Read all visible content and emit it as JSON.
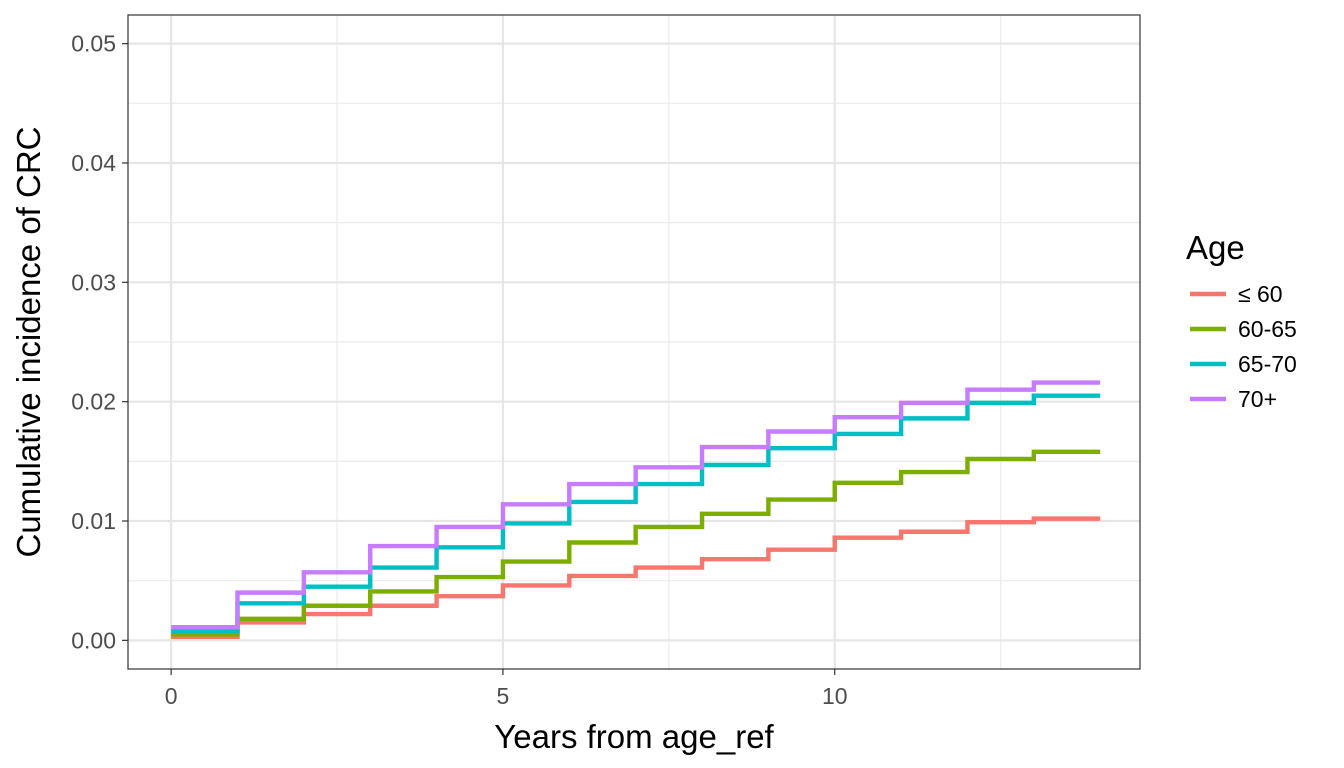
{
  "chart_data": {
    "type": "line",
    "step": true,
    "xlabel": "Years from age_ref",
    "ylabel": "Cumulative incidence of CRC",
    "xlim": [
      -0.65,
      14.6
    ],
    "ylim": [
      -0.0024,
      0.0524
    ],
    "xticks": [
      0,
      5,
      10
    ],
    "xtick_labels": [
      "0",
      "5",
      "10"
    ],
    "yticks": [
      0.0,
      0.01,
      0.02,
      0.03,
      0.04,
      0.05
    ],
    "ytick_labels": [
      "0.00",
      "0.01",
      "0.02",
      "0.03",
      "0.04",
      "0.05"
    ],
    "grid": true,
    "legend": {
      "title": "Age",
      "position": "right"
    },
    "x": [
      0,
      1,
      2,
      3,
      4,
      5,
      6,
      7,
      8,
      9,
      10,
      11,
      12,
      13,
      14
    ],
    "series": [
      {
        "name": "≤ 60",
        "color": "#F8766D",
        "values": [
          0.0003,
          0.0015,
          0.0022,
          0.0029,
          0.0037,
          0.0046,
          0.0054,
          0.0061,
          0.0068,
          0.0076,
          0.0086,
          0.0091,
          0.0099,
          0.0102,
          0.0102
        ]
      },
      {
        "name": "60-65",
        "color": "#7CAE00",
        "values": [
          0.0005,
          0.0018,
          0.0029,
          0.0041,
          0.0053,
          0.0066,
          0.0082,
          0.0095,
          0.0106,
          0.0118,
          0.0132,
          0.0141,
          0.0152,
          0.0158,
          0.0158
        ]
      },
      {
        "name": "65-70",
        "color": "#00BFC4",
        "values": [
          0.0008,
          0.0031,
          0.0045,
          0.0061,
          0.0078,
          0.0098,
          0.0116,
          0.0131,
          0.0147,
          0.0161,
          0.0173,
          0.0186,
          0.0199,
          0.0205,
          0.0205
        ]
      },
      {
        "name": "70+",
        "color": "#C77CFF",
        "values": [
          0.0011,
          0.004,
          0.0057,
          0.0079,
          0.0095,
          0.0114,
          0.0131,
          0.0145,
          0.0162,
          0.0175,
          0.0187,
          0.0199,
          0.021,
          0.0216,
          0.0216
        ]
      }
    ]
  }
}
